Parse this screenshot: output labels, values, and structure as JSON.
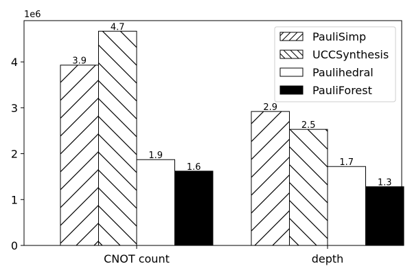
{
  "chart_data": {
    "type": "bar",
    "categories": [
      "CNOT count",
      "depth"
    ],
    "series": [
      {
        "name": "PauliSimp",
        "values": [
          3930000,
          2920000
        ],
        "value_labels": [
          "3.9",
          "2.9"
        ],
        "pattern": "hatch-forward"
      },
      {
        "name": "UCCSynthesis",
        "values": [
          4670000,
          2530000
        ],
        "value_labels": [
          "4.7",
          "2.5"
        ],
        "pattern": "hatch-backward"
      },
      {
        "name": "Paulihedral",
        "values": [
          1870000,
          1720000
        ],
        "value_labels": [
          "1.9",
          "1.7"
        ],
        "pattern": "empty"
      },
      {
        "name": "PauliForest",
        "values": [
          1620000,
          1280000
        ],
        "value_labels": [
          "1.6",
          "1.3"
        ],
        "pattern": "solid"
      }
    ],
    "ylim": [
      0,
      4900000
    ],
    "yticks": [
      0,
      1000000,
      2000000,
      3000000,
      4000000
    ],
    "ytick_labels": [
      "0",
      "1",
      "2",
      "3",
      "4"
    ],
    "y_offset_label": "1e6",
    "legend_position": "top-right",
    "grid": false,
    "colors": {
      "edge": "#000000",
      "solid": "#000000",
      "background": "#ffffff"
    }
  }
}
